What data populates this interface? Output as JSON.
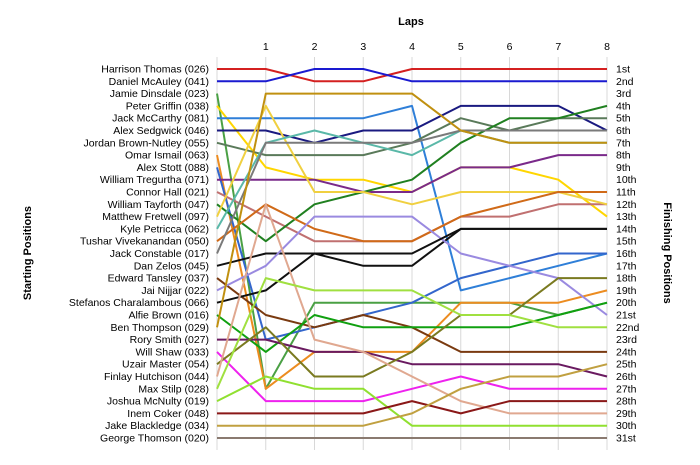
{
  "chart_data": {
    "type": "line",
    "xlabel": "Laps",
    "left_axis_title": "Starting Positions",
    "right_axis_title": "Finishing Positions",
    "laps": [
      1,
      2,
      3,
      4,
      5,
      6,
      7,
      8
    ],
    "grid": true,
    "y_inverted": true,
    "finishing_labels": [
      "1st",
      "2nd",
      "3rd",
      "4th",
      "5th",
      "6th",
      "7th",
      "8th",
      "9th",
      "10th",
      "11th",
      "12th",
      "13th",
      "14th",
      "15th",
      "16th",
      "17th",
      "18th",
      "19th",
      "20th",
      "21st",
      "22nd",
      "23rd",
      "24th",
      "25th",
      "26th",
      "27th",
      "28th",
      "29th",
      "30th",
      "31st"
    ],
    "series": [
      {
        "name": "Harrison Thomas (026)",
        "color": "#d42020",
        "positions": [
          1,
          1,
          2,
          2,
          1,
          1,
          1,
          1,
          1
        ]
      },
      {
        "name": "Daniel McAuley (041)",
        "color": "#1a1ad0",
        "positions": [
          2,
          2,
          1,
          1,
          2,
          2,
          2,
          2,
          2
        ]
      },
      {
        "name": "Jamie Dinsdale (023)",
        "color": "#4aa044",
        "positions": [
          3,
          27,
          20,
          20,
          20,
          20,
          20,
          21,
          20
        ]
      },
      {
        "name": "Peter Griffin (038)",
        "color": "#ffd600",
        "positions": [
          4,
          9,
          10,
          10,
          11,
          9,
          9,
          10,
          13
        ]
      },
      {
        "name": "Jack McCarthy (081)",
        "color": "#2f7fd8",
        "positions": [
          5,
          5,
          5,
          5,
          4,
          19,
          18,
          17,
          16
        ]
      },
      {
        "name": "Alex Sedgwick (046)",
        "color": "#1a1a80",
        "positions": [
          6,
          6,
          7,
          6,
          6,
          4,
          4,
          4,
          6
        ]
      },
      {
        "name": "Jordan Brown-Nutley (055)",
        "color": "#5a7a5a",
        "positions": [
          7,
          8,
          8,
          8,
          7,
          5,
          6,
          5,
          5
        ]
      },
      {
        "name": "Omar Ismail (063)",
        "color": "#ec8c20",
        "positions": [
          8,
          27,
          24,
          24,
          24,
          20,
          20,
          20,
          19
        ]
      },
      {
        "name": "Alex Stott (088)",
        "color": "#3366cc",
        "positions": [
          9,
          23,
          22,
          21,
          20,
          18,
          17,
          16,
          16
        ]
      },
      {
        "name": "William Tregurtha (071)",
        "color": "#7a2a8a",
        "positions": [
          10,
          10,
          10,
          11,
          11,
          9,
          9,
          8,
          8
        ]
      },
      {
        "name": "Connor Hall (021)",
        "color": "#c07070",
        "positions": [
          11,
          13,
          15,
          15,
          15,
          13,
          13,
          12,
          12
        ]
      },
      {
        "name": "William Tayforth (047)",
        "color": "#208020",
        "positions": [
          12,
          15,
          12,
          11,
          10,
          7,
          5,
          5,
          4
        ]
      },
      {
        "name": "Matthew Fretwell (097)",
        "color": "#f0d040",
        "positions": [
          13,
          4,
          11,
          11,
          12,
          11,
          11,
          11,
          12
        ]
      },
      {
        "name": "Kyle Petricca (062)",
        "color": "#5ab8a8",
        "positions": [
          14,
          7,
          6,
          7,
          8,
          6,
          7,
          7,
          7
        ]
      },
      {
        "name": "Tushar Vivekanandan (050)",
        "color": "#d06a18",
        "positions": [
          15,
          12,
          14,
          15,
          15,
          13,
          12,
          11,
          11
        ]
      },
      {
        "name": "Jack Constable (017)",
        "color": "#7a7a7a",
        "positions": [
          16,
          7,
          7,
          7,
          7,
          6,
          6,
          6,
          6
        ]
      },
      {
        "name": "Dan Zelos (045)",
        "color": "#111111",
        "positions": [
          17,
          16,
          16,
          17,
          17,
          14,
          14,
          14,
          14
        ]
      },
      {
        "name": "Edward Tansley (037)",
        "color": "#7a3a10",
        "positions": [
          18,
          21,
          22,
          21,
          22,
          24,
          24,
          24,
          24
        ]
      },
      {
        "name": "Jai Nijjar (022)",
        "color": "#9a8ae0",
        "positions": [
          19,
          17,
          13,
          13,
          13,
          16,
          17,
          18,
          21
        ]
      },
      {
        "name": "Stefanos Charalambous (066)",
        "color": "#101010",
        "positions": [
          20,
          19,
          16,
          16,
          16,
          14,
          14,
          14,
          14
        ]
      },
      {
        "name": "Alfie Brown (016)",
        "color": "#10a010",
        "positions": [
          21,
          24,
          21,
          22,
          22,
          22,
          22,
          21,
          20
        ]
      },
      {
        "name": "Ben Thompson (029)",
        "color": "#c09010",
        "positions": [
          22,
          3,
          3,
          3,
          3,
          6,
          7,
          7,
          7
        ]
      },
      {
        "name": "Rory Smith (027)",
        "color": "#6a1a60",
        "positions": [
          23,
          23,
          24,
          24,
          25,
          25,
          25,
          25,
          26
        ]
      },
      {
        "name": "Will Shaw (033)",
        "color": "#ee22ee",
        "positions": [
          24,
          28,
          28,
          28,
          27,
          26,
          27,
          27,
          27
        ]
      },
      {
        "name": "Uzair Master (054)",
        "color": "#7a7a20",
        "positions": [
          25,
          22,
          26,
          26,
          24,
          21,
          21,
          18,
          18
        ]
      },
      {
        "name": "Finlay Hutchison (044)",
        "color": "#e0a890",
        "positions": [
          26,
          12,
          23,
          24,
          26,
          28,
          29,
          29,
          29
        ]
      },
      {
        "name": "Max Stilp (028)",
        "color": "#a0e040",
        "positions": [
          27,
          18,
          19,
          19,
          19,
          21,
          21,
          22,
          22
        ]
      },
      {
        "name": "Joshua McNulty (019)",
        "color": "#90e030",
        "positions": [
          28,
          26,
          27,
          27,
          30,
          30,
          30,
          30,
          30
        ]
      },
      {
        "name": "Inem Coker (048)",
        "color": "#8a1818",
        "positions": [
          29,
          29,
          29,
          29,
          28,
          29,
          28,
          28,
          28
        ]
      },
      {
        "name": "Jake Blackledge (034)",
        "color": "#c0a040",
        "positions": [
          30,
          30,
          30,
          30,
          29,
          27,
          26,
          26,
          25
        ]
      },
      {
        "name": "George Thomson (020)",
        "color": "#8a7a70",
        "positions": [
          31,
          31,
          31,
          31,
          31,
          31,
          31,
          31,
          31
        ]
      }
    ]
  }
}
